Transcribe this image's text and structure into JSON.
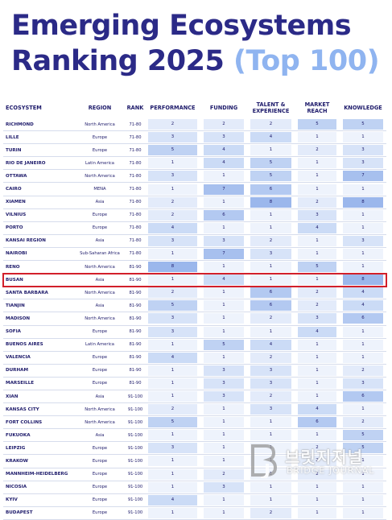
{
  "title": {
    "line1": "Emerging Ecosystems",
    "line2": "Ranking 2025",
    "highlight": "(Top 100)"
  },
  "colors": {
    "title": "#2b2a87",
    "highlight": "#8fb4f0",
    "row_highlight": "#d21f2a",
    "scale": [
      "#eef3fc",
      "#e3ebfa",
      "#d7e3f8",
      "#cbdbf6",
      "#bfd2f3",
      "#b3c9f1",
      "#a7c0ee",
      "#9bb7ec"
    ]
  },
  "columns": [
    "ECOSYSTEM",
    "REGION",
    "RANK",
    "PERFORMANCE",
    "FUNDING",
    "TALENT & EXPERIENCE",
    "MARKET REACH",
    "KNOWLEDGE"
  ],
  "highlighted_row": "BUSAN",
  "rows": [
    [
      "RICHMOND",
      "North America",
      "71-80",
      "2",
      "2",
      "2",
      "5",
      "5"
    ],
    [
      "LILLE",
      "Europe",
      "71-80",
      "3",
      "3",
      "4",
      "1",
      "1"
    ],
    [
      "TURIN",
      "Europe",
      "71-80",
      "5",
      "4",
      "1",
      "2",
      "3"
    ],
    [
      "RIO DE JANEIRO",
      "Latin America",
      "71-80",
      "1",
      "4",
      "5",
      "1",
      "3"
    ],
    [
      "OTTAWA",
      "North America",
      "71-80",
      "3",
      "1",
      "5",
      "1",
      "7"
    ],
    [
      "CAIRO",
      "MENA",
      "71-80",
      "1",
      "7",
      "6",
      "1",
      "1"
    ],
    [
      "XIAMEN",
      "Asia",
      "71-80",
      "2",
      "1",
      "8",
      "2",
      "8"
    ],
    [
      "VILNIUS",
      "Europe",
      "71-80",
      "2",
      "6",
      "1",
      "3",
      "1"
    ],
    [
      "PORTO",
      "Europe",
      "71-80",
      "4",
      "1",
      "1",
      "4",
      "1"
    ],
    [
      "KANSAI REGION",
      "Asia",
      "71-80",
      "3",
      "3",
      "2",
      "1",
      "3"
    ],
    [
      "NAIROBI",
      "Sub-Saharan Africa",
      "71-80",
      "1",
      "7",
      "3",
      "1",
      "1"
    ],
    [
      "RENO",
      "North America",
      "81-90",
      "8",
      "1",
      "1",
      "5",
      "1"
    ],
    [
      "BUSAN",
      "Asia",
      "81-90",
      "1",
      "4",
      "1",
      "1",
      "8"
    ],
    [
      "SANTA BARBARA",
      "North America",
      "81-90",
      "2",
      "1",
      "6",
      "2",
      "4"
    ],
    [
      "TIANJIN",
      "Asia",
      "81-90",
      "5",
      "1",
      "6",
      "2",
      "4"
    ],
    [
      "MADISON",
      "North America",
      "81-90",
      "3",
      "1",
      "2",
      "3",
      "6"
    ],
    [
      "SOFIA",
      "Europe",
      "81-90",
      "3",
      "1",
      "1",
      "4",
      "1"
    ],
    [
      "BUENOS AIRES",
      "Latin America",
      "81-90",
      "1",
      "5",
      "4",
      "1",
      "1"
    ],
    [
      "VALENCIA",
      "Europe",
      "81-90",
      "4",
      "1",
      "2",
      "1",
      "1"
    ],
    [
      "DURHAM",
      "Europe",
      "81-90",
      "1",
      "3",
      "3",
      "1",
      "2"
    ],
    [
      "MARSEILLE",
      "Europe",
      "81-90",
      "1",
      "3",
      "3",
      "1",
      "3"
    ],
    [
      "XIAN",
      "Asia",
      "91-100",
      "1",
      "3",
      "2",
      "1",
      "6"
    ],
    [
      "KANSAS CITY",
      "North America",
      "91-100",
      "2",
      "1",
      "3",
      "4",
      "1"
    ],
    [
      "FORT COLLINS",
      "North America",
      "91-100",
      "5",
      "1",
      "1",
      "6",
      "2"
    ],
    [
      "FUKUOKA",
      "Asia",
      "91-100",
      "1",
      "1",
      "1",
      "1",
      "5"
    ],
    [
      "LEIPZIG",
      "Europe",
      "91-100",
      "3",
      "1",
      "1",
      "2",
      "5"
    ],
    [
      "KRAKOW",
      "Europe",
      "91-100",
      "1",
      "1",
      "1",
      "2",
      "1"
    ],
    [
      "MANNHEIM-HEIDELBERG",
      "Europe",
      "91-100",
      "1",
      "2",
      "1",
      "2",
      "1"
    ],
    [
      "NICOSIA",
      "Europe",
      "91-100",
      "1",
      "3",
      "1",
      "1",
      "1"
    ],
    [
      "KYIV",
      "Europe",
      "91-100",
      "4",
      "1",
      "1",
      "1",
      "1"
    ],
    [
      "BUDAPEST",
      "Europe",
      "91-100",
      "1",
      "1",
      "2",
      "1",
      "1"
    ]
  ],
  "watermark": {
    "text": "브릿지저널",
    "sub": "BRIDGE JOURNAL"
  }
}
